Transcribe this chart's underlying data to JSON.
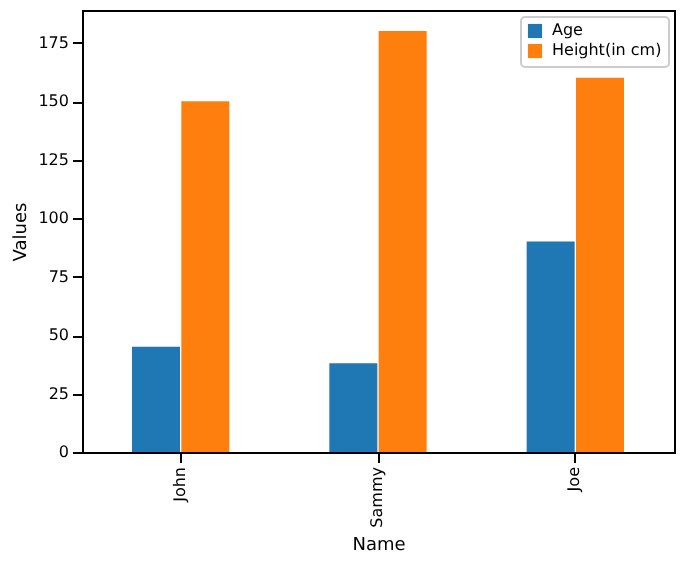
{
  "chart_data": {
    "type": "bar",
    "xlabel": "Name",
    "ylabel": "Values",
    "categories": [
      "John",
      "Sammy",
      "Joe"
    ],
    "series": [
      {
        "name": "Age",
        "color": "#1f77b4",
        "values": [
          45,
          38,
          90
        ]
      },
      {
        "name": "Height(in cm)",
        "color": "#ff7f0e",
        "values": [
          150,
          180,
          160
        ]
      }
    ],
    "ylim": [
      0,
      189
    ],
    "yticks": [
      0,
      25,
      50,
      75,
      100,
      125,
      150,
      175
    ],
    "grid": false,
    "legend": "top right"
  }
}
